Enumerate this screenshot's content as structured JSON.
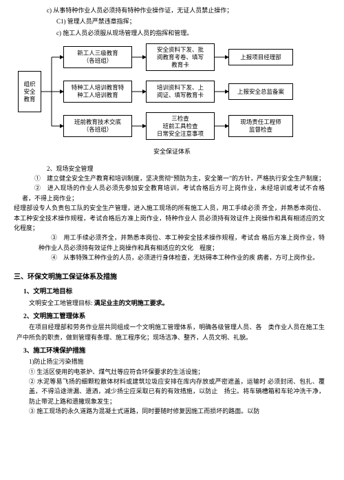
{
  "top": {
    "c": "c) 从事特种作业人员必须持有特种作业操作证，无证人员禁止操作；",
    "c1": "C1) 管理人员严禁违章指挥；",
    "c2": "c) 施工人员必须服从现场管理人员的指挥和管理。"
  },
  "diagram": {
    "root": "组织\n安全\n教育",
    "r1a": "新工人三级教育\n（各班组）",
    "r1b": "安全资料下发、批\n阅教育考卷、填写\n教育卡",
    "r1c": "上报项目经理部",
    "r2a": "特种工人培训教育特\n种工人培训教育",
    "r2b": "培训资料下发、上\n阅证、填写教育卡",
    "r2c": "上报安全总监备案",
    "r3a": "班前教育技术交底\n（各班组）",
    "r3b": "三检查\n班前工具检查\n日常安全注意事项",
    "r3c": "现场责任工程师\n监督检查",
    "caption": "安全保证体系"
  },
  "sec2": {
    "title": "2、现场安全管理",
    "p1": "①　建立健全安全生产教育和培训制度，坚决贯彻“预防为主，安全第一”的方针，严格执行安全生产制度；",
    "p2": "②　进入现场的作业人员必须先参加安全教育培训，考试合格后方可上岗作业，未经培训或考试不合格者，不得上岗作业；",
    "p3": "经理部设专人负责包工队的安全生产管理，进入施工现场的所有施工人员，用工手续必须 齐全，并熟悉本岗位、本工种安全技术操作规程，考试合格后方准上岗作业，特种作业人 员必须持有效证件上岗操作和具有相适应的文化程度；",
    "p4": "③　用工手续必须齐全，并熟悉本岗位、本工种安全技术操作规程，考试合 格后方准上岗作业，特种作业人员必须持有效证件上岗操作和具有相适应的文化　程度；",
    "p5": "④　从事特殊工种作业的人员，必须进行身体检查，无妨碍本工种作业的疾 病者，方可上岗作业。"
  },
  "sec3": {
    "h3": "三、环保文明施工保证体系及措施",
    "h4_1": "1、文明工地目标",
    "p1a": "文明安全工地管理目标: ",
    "p1b": "满足业主的文明施工要求。",
    "h4_2": "2、文明施工管理体系",
    "p2": "在项目经理部和劳务作业层共同组成一个文明施工管理体系，明确各级管理人员、各　类作业人员在施工生产中所负的职责，做到管理有条理、施工程序化；现场洁净、整齐，人员文明、礼貌。",
    "h4_3": "3、施工环境保护措施",
    "s1": "1)防止扬尘污染措施",
    "s1a": "① 生活区使用的电茶炉、煤气灶等应符合环保要求的生活设施；",
    "s1b": "② 水泥等易飞扬的细颗粒散体材料或建筑垃圾应安排在库内存放或严密遮盖，运输时 必须封闭、包扎、覆盖，不得沿途泄漏、遗洒，减少扬尘应采取已有的有效措施，以防止　扬尘。将车辆槽箱和车轮冲洗干净，防止带泥上路和遗撒现象发生；",
    "s1c": "③ 施工现场的永久道路为混凝土式道路，同时要随时修复因施工而损坏的路面。以防"
  },
  "style": {
    "box_border": "#000000",
    "bg": "#ffffff",
    "font_main": 9,
    "font_box": 8.5
  }
}
